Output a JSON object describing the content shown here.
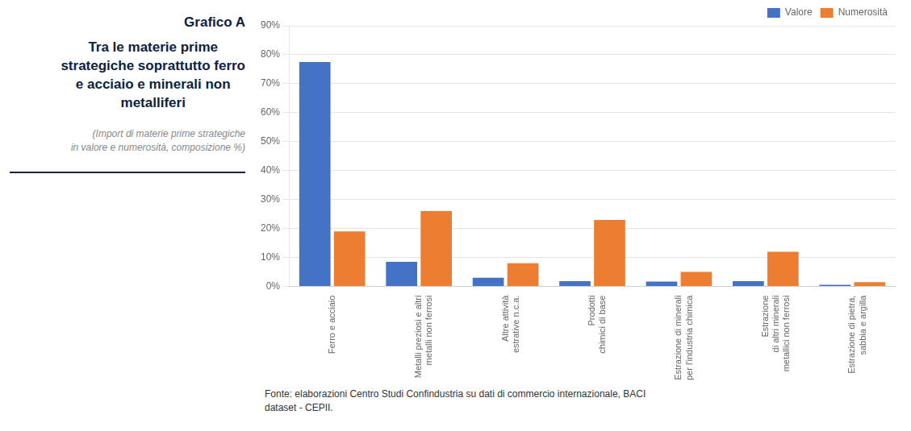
{
  "chart_data": {
    "type": "bar",
    "title": "Grafico A\nTra le materie prime\nstrategiche soprattutto ferro\ne acciaio e minerali non\nmetalliferi",
    "subtitle": "(Import di materie prime strategiche\nin valore e numerosità, composizione %)",
    "annotations": [
      "Fonte: elaborazioni Centro Studi Confindustria su dati di commercio internazionale, BACI\ndataset - CEPII."
    ],
    "categories": [
      "Ferro e acciaio",
      "Metalli preziosi e altri\nmetalli non ferrosi",
      "Altre attività\nestrative n.c.a.",
      "Prodotti\nchimici di base",
      "Estrazione di minerali\nper l'industria chimica",
      "Estrazione\ndi altri minerali\nmetallici non ferrosi",
      "Estrazione di pietra,\nsabbia e argilla"
    ],
    "series": [
      {
        "name": "Valore",
        "color": "#4472C4",
        "values": [
          77.5,
          8.5,
          3.0,
          1.8,
          1.7,
          1.8,
          0.6
        ]
      },
      {
        "name": "Numerosità",
        "color": "#ED7D31",
        "values": [
          19.0,
          26.0,
          8.0,
          23.0,
          5.0,
          12.0,
          1.5
        ]
      }
    ],
    "ylim": [
      0,
      90
    ],
    "yticks": [
      {
        "value": 0,
        "label": "0%"
      },
      {
        "value": 10,
        "label": "10%"
      },
      {
        "value": 20,
        "label": "20%"
      },
      {
        "value": 30,
        "label": "30%"
      },
      {
        "value": 40,
        "label": "40%"
      },
      {
        "value": 50,
        "label": "50%"
      },
      {
        "value": 60,
        "label": "60%"
      },
      {
        "value": 70,
        "label": "70%"
      },
      {
        "value": 80,
        "label": "80%"
      },
      {
        "value": 90,
        "label": "90%"
      }
    ],
    "grid": true,
    "legend": "upper right"
  }
}
